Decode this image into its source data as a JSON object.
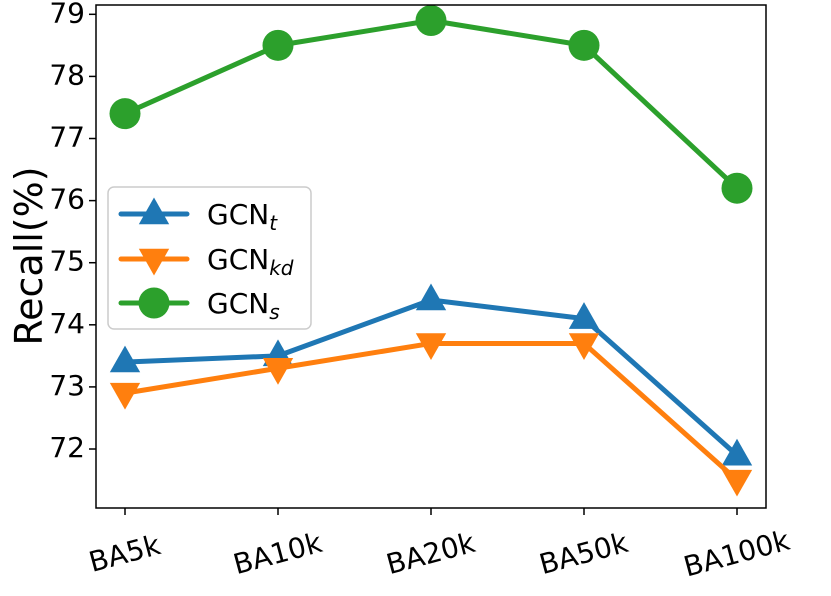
{
  "chart_data": {
    "type": "line",
    "title": "",
    "xlabel": "",
    "ylabel": "Recall(%)",
    "categories": [
      "BA5k",
      "BA10k",
      "BA20k",
      "BA50k",
      "BA100k"
    ],
    "ylim": [
      71.05,
      79.15
    ],
    "yticks": [
      72,
      73,
      74,
      75,
      76,
      77,
      78,
      79
    ],
    "grid": false,
    "legend": {
      "position": "center-left"
    },
    "series": [
      {
        "name": "GCN",
        "subscript": "t",
        "color": "#1f77b4",
        "marker": "triangle-up",
        "values": [
          73.4,
          73.5,
          74.4,
          74.1,
          71.9
        ]
      },
      {
        "name": "GCN",
        "subscript": "kd",
        "color": "#ff7f0e",
        "marker": "triangle-down",
        "values": [
          72.9,
          73.3,
          73.7,
          73.7,
          71.5
        ]
      },
      {
        "name": "GCN",
        "subscript": "s",
        "color": "#2ca02c",
        "marker": "circle",
        "values": [
          77.4,
          78.5,
          78.9,
          78.5,
          76.2
        ]
      }
    ]
  }
}
